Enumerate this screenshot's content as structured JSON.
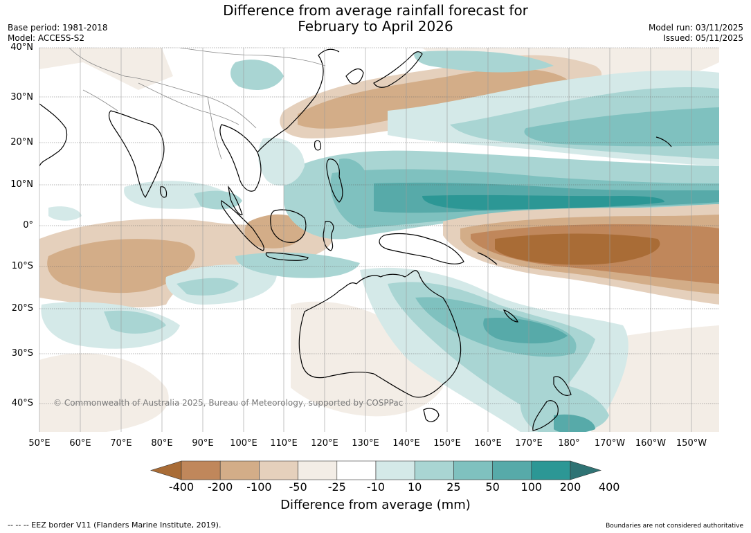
{
  "title_line1": "Difference from average rainfall forecast for",
  "title_line2": "February to April 2026",
  "meta": {
    "base_period": "Base period: 1981-2018",
    "model": "Model: ACCESS-S2",
    "model_run": "Model run: 03/11/2025",
    "issued": "Issued: 05/11/2025"
  },
  "lat_labels": [
    "40°N",
    "30°N",
    "20°N",
    "10°N",
    "0°",
    "10°S",
    "20°S",
    "30°S",
    "40°S"
  ],
  "lon_labels": [
    "50°E",
    "60°E",
    "70°E",
    "80°E",
    "90°E",
    "100°E",
    "110°E",
    "120°E",
    "130°E",
    "140°E",
    "150°E",
    "160°E",
    "170°E",
    "180°",
    "170°W",
    "160°W",
    "150°W"
  ],
  "copyright": "© Commonwealth of Australia 2025, Bureau of Meteorology, supported by COSPPac",
  "colorbar": {
    "label": "Difference from average (mm)",
    "ticks": [
      "-400",
      "-200",
      "-100",
      "-50",
      "-25",
      "-10",
      "10",
      "25",
      "50",
      "100",
      "200",
      "400"
    ],
    "colors": [
      "#a96c36",
      "#c0875b",
      "#d3ad88",
      "#e5d0bc",
      "#f3ede6",
      "#ffffff",
      "#d4e9e8",
      "#a9d5d3",
      "#7fc1bf",
      "#57aaa9",
      "#2c9795",
      "#2f7374"
    ]
  },
  "footer": {
    "eez": "--  --  -- EEZ border V11 (Flanders Marine Institute, 2019).",
    "boundaries": "Boundaries are not considered authoritative"
  }
}
